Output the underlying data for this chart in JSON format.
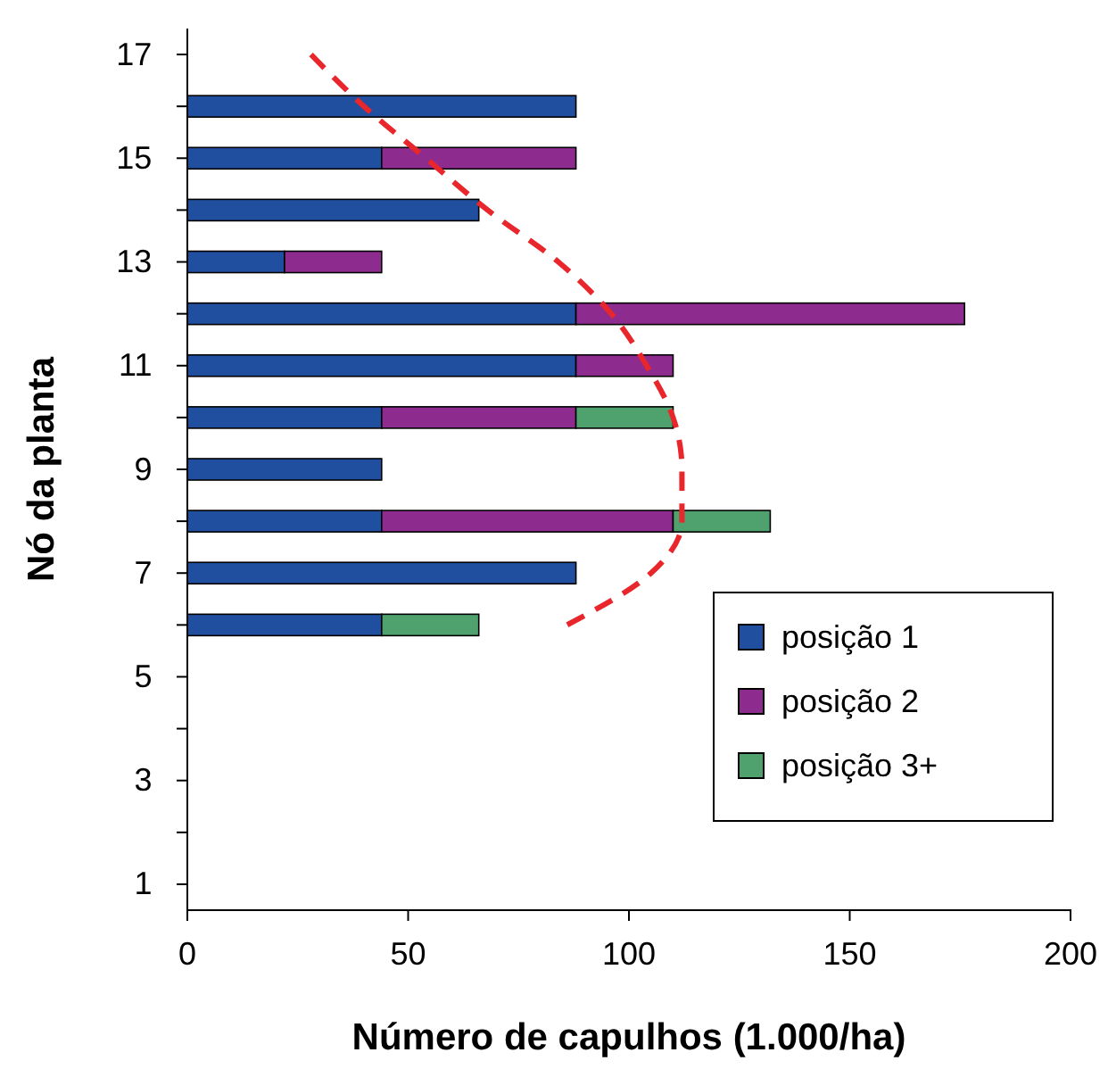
{
  "chart_data": {
    "type": "bar",
    "orientation": "horizontal",
    "stacked": true,
    "xlabel": "Número de capulhos (1.000/ha)",
    "ylabel": "Nó da planta",
    "categories": [
      "17",
      null,
      "15",
      null,
      "13",
      null,
      "11",
      null,
      "9",
      null,
      "7",
      null,
      "5",
      null,
      "3",
      null,
      "1"
    ],
    "xlim": [
      0,
      200
    ],
    "xticks": [
      0,
      50,
      100,
      150,
      200
    ],
    "series": [
      {
        "name": "posição 1",
        "color": "#1f4f9e",
        "values": [
          null,
          88,
          44,
          66,
          22,
          88,
          88,
          44,
          44,
          44,
          88,
          44,
          null,
          null,
          null,
          null,
          null
        ]
      },
      {
        "name": "posição 2",
        "color": "#8e2b8e",
        "values": [
          null,
          null,
          44,
          null,
          22,
          88,
          22,
          44,
          null,
          66,
          null,
          null,
          null,
          null,
          null,
          null,
          null
        ]
      },
      {
        "name": "posição 3+",
        "color": "#4fa26e",
        "values": [
          null,
          null,
          null,
          null,
          null,
          null,
          null,
          22,
          null,
          22,
          null,
          22,
          null,
          null,
          null,
          null,
          null
        ]
      },
      {
        "type": "line",
        "color": "#e8262b",
        "line_style": "dashed",
        "values": [
          28,
          40,
          54,
          68,
          84,
          96,
          104,
          110,
          112,
          112,
          105,
          86,
          null,
          null,
          null,
          null,
          null
        ]
      }
    ],
    "legend": "bottom right",
    "grid": false
  }
}
